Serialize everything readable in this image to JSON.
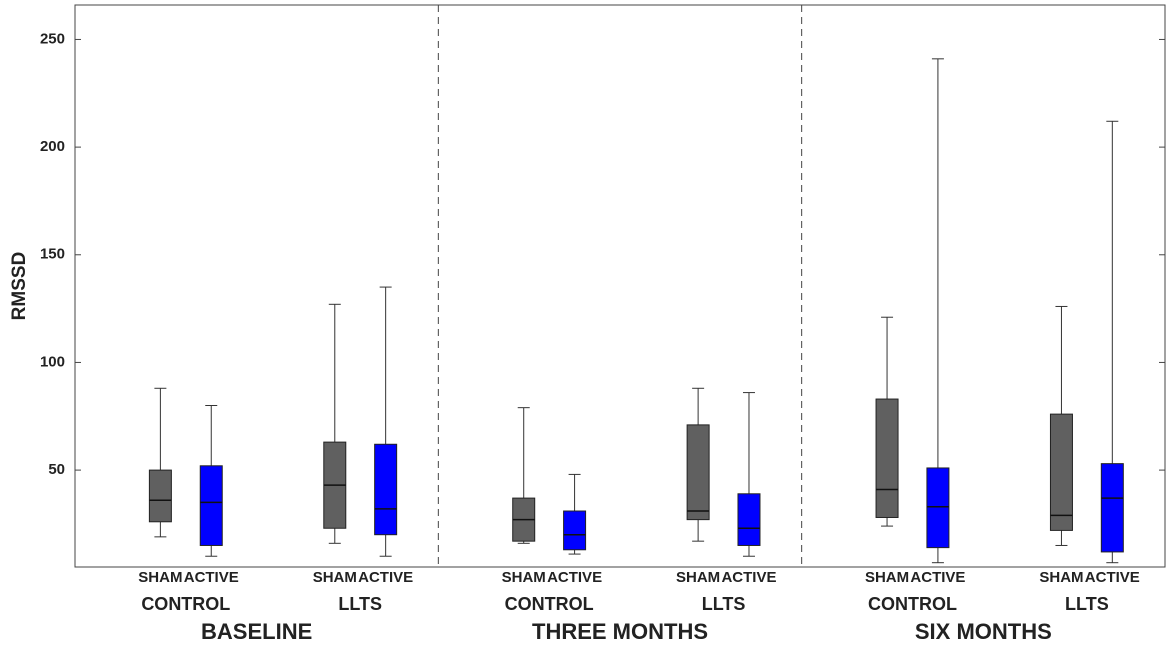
{
  "chart_data": {
    "type": "box",
    "y_label": "RMSSD",
    "ylim": [
      5,
      266
    ],
    "yticks": [
      50,
      100,
      150,
      200,
      250
    ],
    "periods": [
      "BASELINE",
      "THREE MONTHS",
      "SIX MONTHS"
    ],
    "groups": [
      "CONTROL",
      "LLTS"
    ],
    "series": [
      {
        "name": "SHAM",
        "color": "#606060",
        "values": [
          {
            "min": 19,
            "q1": 26,
            "median": 36,
            "q3": 50,
            "max": 88
          },
          {
            "min": 16,
            "q1": 23,
            "median": 43,
            "q3": 63,
            "max": 127
          },
          {
            "min": 16,
            "q1": 17,
            "median": 27,
            "q3": 37,
            "max": 79
          },
          {
            "min": 17,
            "q1": 27,
            "median": 31,
            "q3": 71,
            "max": 88
          },
          {
            "min": 24,
            "q1": 28,
            "median": 41,
            "q3": 83,
            "max": 121
          },
          {
            "min": 15,
            "q1": 22,
            "median": 29,
            "q3": 76,
            "max": 126
          }
        ]
      },
      {
        "name": "ACTIVE",
        "color": "#0000ff",
        "values": [
          {
            "min": 10,
            "q1": 15,
            "median": 35,
            "q3": 52,
            "max": 80
          },
          {
            "min": 10,
            "q1": 20,
            "median": 32,
            "q3": 62,
            "max": 135
          },
          {
            "min": 11,
            "q1": 13,
            "median": 20,
            "q3": 31,
            "max": 48
          },
          {
            "min": 10,
            "q1": 15,
            "median": 23,
            "q3": 39,
            "max": 86
          },
          {
            "min": 7,
            "q1": 14,
            "median": 33,
            "q3": 51,
            "max": 241
          },
          {
            "min": 7,
            "q1": 12,
            "median": 37,
            "q3": 53,
            "max": 212
          }
        ]
      }
    ]
  }
}
